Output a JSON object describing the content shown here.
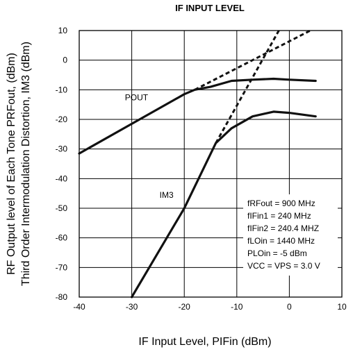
{
  "chart_data": {
    "type": "line",
    "title": "IF INPUT LEVEL",
    "xlabel": "IF Input Level, PIFin (dBm)",
    "ylabel_line1": "RF Output level of Each Tone PRFout, (dBm)",
    "ylabel_line2": "Third Order Intermodulation Distortion, IM3 (dBm)",
    "xlim": [
      -40,
      10
    ],
    "ylim": [
      -80,
      10
    ],
    "x_ticks": [
      "-40",
      "-30",
      "-20",
      "-10",
      "0",
      "10"
    ],
    "y_ticks": [
      "10",
      "0",
      "-10",
      "-20",
      "-30",
      "-40",
      "-50",
      "-60",
      "-70",
      "-80"
    ],
    "grid": true,
    "series": [
      {
        "name": "POUT",
        "style": "solid",
        "points": [
          [
            -40,
            -31.5
          ],
          [
            -30,
            -21.5
          ],
          [
            -20,
            -11.5
          ],
          [
            -18,
            -10
          ],
          [
            -15,
            -9
          ],
          [
            -11,
            -7
          ],
          [
            -7,
            -6.6
          ],
          [
            -3,
            -6.3
          ],
          [
            0,
            -6.6
          ],
          [
            5,
            -7
          ]
        ]
      },
      {
        "name": "IM3",
        "style": "solid",
        "points": [
          [
            -30,
            -80
          ],
          [
            -20,
            -50
          ],
          [
            -14,
            -28
          ],
          [
            -11,
            -23
          ],
          [
            -7,
            -19
          ],
          [
            -3,
            -17.4
          ],
          [
            0,
            -17.8
          ],
          [
            5,
            -19
          ]
        ]
      },
      {
        "name": "",
        "style": "dashed",
        "points": [
          [
            -18,
            -10
          ],
          [
            4,
            10
          ]
        ]
      },
      {
        "name": "",
        "style": "dashed",
        "points": [
          [
            -14,
            -28
          ],
          [
            -2,
            10
          ]
        ]
      }
    ],
    "annotations": [
      {
        "text": "POUT",
        "x": -31.3,
        "y": -13.5
      },
      {
        "text": "IM3",
        "x": -24.7,
        "y": -46.5
      }
    ],
    "conditions": [
      "fRFout = 900 MHz",
      "fIFin1 = 240 MHz",
      "fIFin2 = 240.4 MHZ",
      "fLOin = 1440 MHz",
      "PLOin = -5 dBm",
      "VCC = VPS = 3.0 V"
    ],
    "colors": {
      "line": "#111111",
      "grid": "#000000",
      "conditions_box": "#ffffff"
    }
  }
}
